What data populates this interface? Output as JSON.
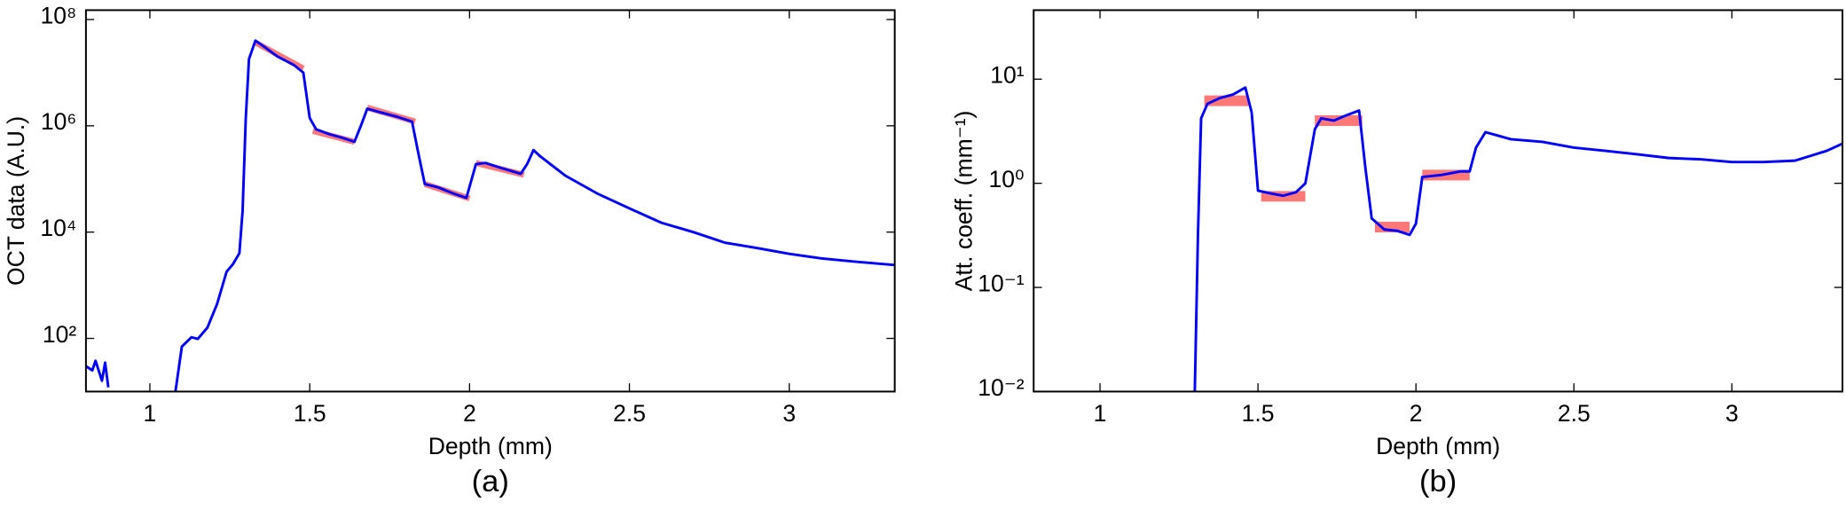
{
  "chart_data": [
    {
      "type": "line",
      "caption": "(a)",
      "xlabel": "Depth (mm)",
      "ylabel": "OCT data (A.U.)",
      "log_y": true,
      "xlim": [
        0.8,
        3.33
      ],
      "xticks": [
        1,
        1.5,
        2,
        2.5,
        3
      ],
      "ylim": [
        10,
        150000000
      ],
      "yticks": [
        {
          "value": 100,
          "label": "10²"
        },
        {
          "value": 10000,
          "label": "10⁴"
        },
        {
          "value": 1000000,
          "label": "10⁶"
        },
        {
          "value": 100000000,
          "label": "10⁸"
        }
      ],
      "series": [
        {
          "color": "#0000ff",
          "x": [
            0.8,
            0.82,
            0.83,
            0.85,
            0.86,
            0.87,
            0.95,
            1.08,
            1.1,
            1.13,
            1.15,
            1.18,
            1.21,
            1.24,
            1.26,
            1.28,
            1.29,
            1.3,
            1.31,
            1.33,
            1.36,
            1.4,
            1.45,
            1.48,
            1.5,
            1.52,
            1.56,
            1.6,
            1.64,
            1.66,
            1.68,
            1.72,
            1.77,
            1.82,
            1.84,
            1.86,
            1.9,
            1.95,
            1.99,
            2.02,
            2.05,
            2.1,
            2.16,
            2.18,
            2.2,
            2.22,
            2.3,
            2.4,
            2.5,
            2.6,
            2.7,
            2.8,
            2.9,
            3.0,
            3.1,
            3.2,
            3.33
          ],
          "values": [
            30,
            25,
            38,
            16,
            35,
            12,
            null,
            10,
            70,
            105,
            98,
            160,
            440,
            1800,
            2500,
            4000,
            25000,
            1400000,
            18000000,
            40000000,
            30000000,
            20000000,
            14000000,
            10000000,
            1400000,
            860000,
            700000,
            600000,
            500000,
            1000000,
            2100000,
            1800000,
            1500000,
            1200000,
            300000,
            80000,
            70000,
            53000,
            44000,
            190000,
            200000,
            160000,
            125000,
            190000,
            350000,
            270000,
            115000,
            53000,
            28000,
            15000,
            10000,
            6300,
            5000,
            3900,
            3200,
            2800,
            2400
          ]
        }
      ],
      "fit_color": "#ff6060",
      "fits": [
        {
          "x": [
            1.33,
            1.48
          ],
          "values": [
            37000000,
            12000000
          ]
        },
        {
          "x": [
            1.51,
            1.64
          ],
          "values": [
            800000,
            500000
          ]
        },
        {
          "x": [
            1.68,
            1.83
          ],
          "values": [
            2200000,
            1200000
          ]
        },
        {
          "x": [
            1.86,
            2.0
          ],
          "values": [
            80000,
            43000
          ]
        },
        {
          "x": [
            2.02,
            2.17
          ],
          "values": [
            200000,
            120000
          ]
        }
      ]
    },
    {
      "type": "line",
      "caption": "(b)",
      "xlabel": "Depth (mm)",
      "ylabel": "Att. coeff. (mm⁻¹)",
      "log_y": true,
      "xlim": [
        0.79,
        3.35
      ],
      "xticks": [
        1,
        1.5,
        2,
        2.5,
        3
      ],
      "ylim": [
        0.01,
        46
      ],
      "yticks": [
        {
          "value": 0.01,
          "label": "10⁻²"
        },
        {
          "value": 0.1,
          "label": "10⁻¹"
        },
        {
          "value": 1,
          "label": "10⁰"
        },
        {
          "value": 10,
          "label": "10¹"
        }
      ],
      "series": [
        {
          "color": "#0000ff",
          "x": [
            1.3,
            1.31,
            1.32,
            1.34,
            1.38,
            1.42,
            1.46,
            1.48,
            1.5,
            1.54,
            1.58,
            1.62,
            1.65,
            1.68,
            1.7,
            1.74,
            1.78,
            1.82,
            1.84,
            1.86,
            1.9,
            1.94,
            1.98,
            2.0,
            2.02,
            2.08,
            2.14,
            2.17,
            2.19,
            2.22,
            2.3,
            2.4,
            2.5,
            2.6,
            2.7,
            2.8,
            2.9,
            3.0,
            3.1,
            3.2,
            3.3,
            3.35
          ],
          "values": [
            0.01,
            0.32,
            4.2,
            5.8,
            6.6,
            7.1,
            8.3,
            4.8,
            0.85,
            0.8,
            0.76,
            0.82,
            1.0,
            3.3,
            4.2,
            4.0,
            4.5,
            5.0,
            1.4,
            0.46,
            0.36,
            0.35,
            0.32,
            0.41,
            1.15,
            1.2,
            1.3,
            1.3,
            2.2,
            3.1,
            2.65,
            2.5,
            2.2,
            2.05,
            1.9,
            1.75,
            1.7,
            1.6,
            1.6,
            1.65,
            2.05,
            2.4
          ]
        }
      ],
      "fit_color": "#ff6060",
      "fits": [
        {
          "x": [
            1.33,
            1.47
          ],
          "values": [
            6.2,
            6.2
          ]
        },
        {
          "x": [
            1.51,
            1.65
          ],
          "values": [
            0.75,
            0.75
          ]
        },
        {
          "x": [
            1.68,
            1.83
          ],
          "values": [
            4.0,
            4.0
          ]
        },
        {
          "x": [
            1.87,
            1.98
          ],
          "values": [
            0.38,
            0.38
          ]
        },
        {
          "x": [
            2.02,
            2.17
          ],
          "values": [
            1.2,
            1.2
          ]
        }
      ]
    }
  ]
}
